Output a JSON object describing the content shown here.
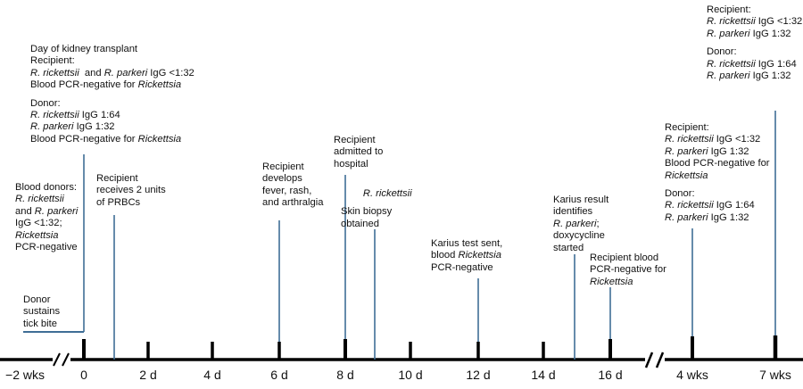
{
  "colors": {
    "axis": "#000000",
    "connector": "#3f6e96",
    "text": "#111111"
  },
  "ticks": [
    "−2 wks",
    "0",
    "2 d",
    "4 d",
    "6 d",
    "8 d",
    "10 d",
    "12 d",
    "14 d",
    "16 d",
    "4 wks",
    "7 wks"
  ],
  "events": {
    "tick_bite": {
      "lines": [
        [
          {
            "t": "Donor"
          }
        ],
        [
          {
            "t": "sustains"
          }
        ],
        [
          {
            "t": "tick bite"
          }
        ]
      ]
    },
    "blood_donors": {
      "lines": [
        [
          {
            "t": "Blood donors:"
          }
        ],
        [
          {
            "t": "R. rickettsii",
            "i": true
          }
        ],
        [
          {
            "t": "and "
          },
          {
            "t": "R. parkeri",
            "i": true
          }
        ],
        [
          {
            "t": "IgG <1:32;"
          }
        ],
        [
          {
            "t": "Rickettsia",
            "i": true
          }
        ],
        [
          {
            "t": "PCR-negative"
          }
        ]
      ]
    },
    "transplant_day": {
      "lines": [
        [
          {
            "t": "Day of kidney transplant"
          }
        ],
        [
          {
            "t": "Recipient:"
          }
        ],
        [
          {
            "t": "R. rickettsii",
            "i": true
          },
          {
            "t": "  and "
          },
          {
            "t": "R. parkeri",
            "i": true
          },
          {
            "t": " IgG <1:32"
          }
        ],
        [
          {
            "t": "Blood PCR-negative for "
          },
          {
            "t": "Rickettsia",
            "i": true
          }
        ],
        "gap",
        [
          {
            "t": "Donor:"
          }
        ],
        [
          {
            "t": "R. rickettsii",
            "i": true
          },
          {
            "t": " IgG 1:64"
          }
        ],
        [
          {
            "t": "R. parkeri",
            "i": true
          },
          {
            "t": " IgG 1:32"
          }
        ],
        [
          {
            "t": "Blood PCR-negative for "
          },
          {
            "t": "Rickettsia",
            "i": true
          }
        ]
      ]
    },
    "prbc": {
      "lines": [
        [
          {
            "t": "Recipient"
          }
        ],
        [
          {
            "t": "receives 2 units"
          }
        ],
        [
          {
            "t": "of PRBCs"
          }
        ]
      ]
    },
    "fever": {
      "lines": [
        [
          {
            "t": "Recipient"
          }
        ],
        [
          {
            "t": "develops"
          }
        ],
        [
          {
            "t": "fever, rash,"
          }
        ],
        [
          {
            "t": "and arthralgia"
          }
        ]
      ]
    },
    "admitted": {
      "lines": [
        [
          {
            "t": "Recipient"
          }
        ],
        [
          {
            "t": "admitted to"
          }
        ],
        [
          {
            "t": "hospital"
          }
        ]
      ]
    },
    "biopsy": {
      "lines": [
        [
          {
            "t": "        "
          },
          {
            "t": "R. rickettsii",
            "i": true
          }
        ],
        "gap",
        [
          {
            "t": "Skin biopsy"
          }
        ],
        [
          {
            "t": "obtained"
          }
        ]
      ]
    },
    "karius_sent": {
      "lines": [
        [
          {
            "t": "Karius test sent,"
          }
        ],
        [
          {
            "t": "blood "
          },
          {
            "t": "Rickettsia",
            "i": true
          }
        ],
        [
          {
            "t": "PCR-negative"
          }
        ]
      ]
    },
    "karius_result": {
      "lines": [
        [
          {
            "t": "Karius result"
          }
        ],
        [
          {
            "t": "identifies"
          }
        ],
        [
          {
            "t": "R. parkeri",
            "i": true
          },
          {
            "t": ";"
          }
        ],
        [
          {
            "t": "doxycycline"
          }
        ],
        [
          {
            "t": "started"
          }
        ]
      ]
    },
    "recipient_pcr": {
      "lines": [
        [
          {
            "t": "Recipient blood"
          }
        ],
        [
          {
            "t": "PCR-negative for"
          }
        ],
        [
          {
            "t": "Rickettsia",
            "i": true
          }
        ]
      ]
    },
    "week4": {
      "lines": [
        [
          {
            "t": "Recipient:"
          }
        ],
        [
          {
            "t": "R. rickettsii",
            "i": true
          },
          {
            "t": " IgG <1:32"
          }
        ],
        [
          {
            "t": "R. parkeri",
            "i": true
          },
          {
            "t": " IgG 1:32"
          }
        ],
        [
          {
            "t": "Blood PCR-negative for"
          }
        ],
        [
          {
            "t": "Rickettsia",
            "i": true
          }
        ],
        "gap",
        [
          {
            "t": "Donor:"
          }
        ],
        [
          {
            "t": "R. rickettsii",
            "i": true
          },
          {
            "t": " IgG 1:64"
          }
        ],
        [
          {
            "t": "R. parkeri",
            "i": true
          },
          {
            "t": " IgG 1:32"
          }
        ]
      ]
    },
    "week7": {
      "lines": [
        [
          {
            "t": "Recipient:"
          }
        ],
        [
          {
            "t": "R. rickettsii",
            "i": true
          },
          {
            "t": " IgG <1:32"
          }
        ],
        [
          {
            "t": "R. parkeri",
            "i": true
          },
          {
            "t": " IgG 1:32"
          }
        ],
        "gap",
        [
          {
            "t": "Donor:"
          }
        ],
        [
          {
            "t": "R. rickettsii",
            "i": true
          },
          {
            "t": " IgG 1:64"
          }
        ],
        [
          {
            "t": "R. parkeri",
            "i": true
          },
          {
            "t": " IgG 1:32"
          }
        ]
      ]
    }
  }
}
